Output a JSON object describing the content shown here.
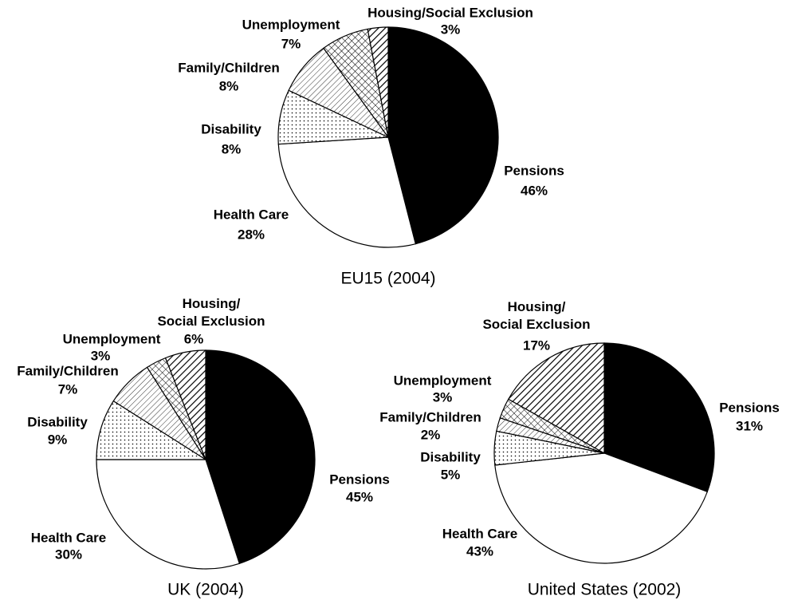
{
  "chart_data": [
    {
      "type": "pie",
      "title": "EU15 (2004)",
      "categories": [
        "Pensions",
        "Health Care",
        "Disability",
        "Family/Children",
        "Unemployment",
        "Housing/Social Exclusion"
      ],
      "values": [
        46,
        28,
        8,
        8,
        7,
        3
      ],
      "value_labels": [
        "46%",
        "28%",
        "8%",
        "8%",
        "7%",
        "3%"
      ]
    },
    {
      "type": "pie",
      "title": "UK (2004)",
      "categories": [
        "Pensions",
        "Health Care",
        "Disability",
        "Family/Children",
        "Unemployment",
        "Housing/\nSocial Exclusion"
      ],
      "values": [
        45,
        30,
        9,
        7,
        3,
        6
      ],
      "value_labels": [
        "45%",
        "30%",
        "9%",
        "7%",
        "3%",
        "6%"
      ]
    },
    {
      "type": "pie",
      "title": "United States (2002)",
      "categories": [
        "Pensions",
        "Health Care",
        "Disability",
        "Family/Children",
        "Unemployment",
        "Housing/\nSocial Exclusion"
      ],
      "values": [
        31,
        43,
        5,
        2,
        3,
        17
      ],
      "value_labels": [
        "31%",
        "43%",
        "5%",
        "2%",
        "3%",
        "17%"
      ]
    }
  ]
}
